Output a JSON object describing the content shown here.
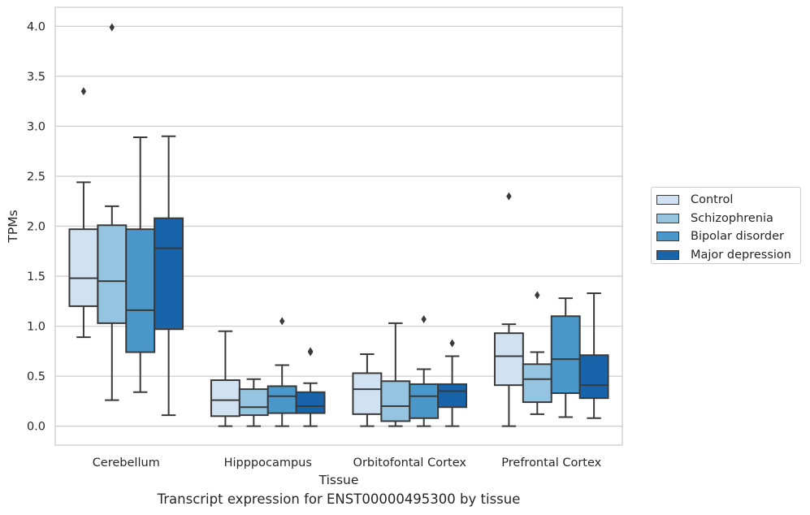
{
  "caption": "Transcript expression for ENST00000495300 by tissue",
  "chart_data": {
    "type": "box",
    "xlabel": "Tissue",
    "ylabel": "TPMs",
    "ylim": [
      -0.19,
      4.19
    ],
    "yticks": [
      0.0,
      0.5,
      1.0,
      1.5,
      2.0,
      2.5,
      3.0,
      3.5,
      4.0
    ],
    "ytick_labels": [
      "0.0",
      "0.5",
      "1.0",
      "1.5",
      "2.0",
      "2.5",
      "3.0",
      "3.5",
      "4.0"
    ],
    "grid": "horizontal",
    "legend_placement": "right, outside",
    "categories": [
      "Cerebellum",
      "Hipppocampus",
      "Orbitofontal Cortex",
      "Prefrontal Cortex"
    ],
    "series": [
      {
        "name": "Control",
        "color": "#d0e1f2",
        "boxes": [
          {
            "whislo": 0.89,
            "q1": 1.2,
            "med": 1.48,
            "q3": 1.97,
            "whishi": 2.44,
            "fliers": [
              3.35
            ]
          },
          {
            "whislo": 0.0,
            "q1": 0.1,
            "med": 0.26,
            "q3": 0.46,
            "whishi": 0.95,
            "fliers": []
          },
          {
            "whislo": 0.0,
            "q1": 0.12,
            "med": 0.37,
            "q3": 0.53,
            "whishi": 0.72,
            "fliers": []
          },
          {
            "whislo": 0.0,
            "q1": 0.41,
            "med": 0.7,
            "q3": 0.93,
            "whishi": 1.02,
            "fliers": [
              2.3
            ]
          }
        ]
      },
      {
        "name": "Schizophrenia",
        "color": "#94c4df",
        "boxes": [
          {
            "whislo": 0.26,
            "q1": 1.03,
            "med": 1.45,
            "q3": 2.01,
            "whishi": 2.2,
            "fliers": [
              3.99
            ]
          },
          {
            "whislo": 0.0,
            "q1": 0.11,
            "med": 0.19,
            "q3": 0.37,
            "whishi": 0.47,
            "fliers": []
          },
          {
            "whislo": 0.0,
            "q1": 0.05,
            "med": 0.2,
            "q3": 0.45,
            "whishi": 1.03,
            "fliers": []
          },
          {
            "whislo": 0.12,
            "q1": 0.24,
            "med": 0.47,
            "q3": 0.62,
            "whishi": 0.74,
            "fliers": [
              1.31
            ]
          }
        ]
      },
      {
        "name": "Bipolar disorder",
        "color": "#4a98c9",
        "boxes": [
          {
            "whislo": 0.34,
            "q1": 0.74,
            "med": 1.16,
            "q3": 1.97,
            "whishi": 2.89,
            "fliers": []
          },
          {
            "whislo": 0.0,
            "q1": 0.13,
            "med": 0.3,
            "q3": 0.4,
            "whishi": 0.61,
            "fliers": [
              1.05
            ]
          },
          {
            "whislo": 0.0,
            "q1": 0.08,
            "med": 0.3,
            "q3": 0.42,
            "whishi": 0.57,
            "fliers": [
              1.07
            ]
          },
          {
            "whislo": 0.09,
            "q1": 0.33,
            "med": 0.67,
            "q3": 1.1,
            "whishi": 1.28,
            "fliers": []
          }
        ]
      },
      {
        "name": "Major depression",
        "color": "#1764ab",
        "boxes": [
          {
            "whislo": 0.11,
            "q1": 0.97,
            "med": 1.78,
            "q3": 2.08,
            "whishi": 2.9,
            "fliers": []
          },
          {
            "whislo": 0.0,
            "q1": 0.13,
            "med": 0.2,
            "q3": 0.34,
            "whishi": 0.43,
            "fliers": [
              0.74,
              0.75
            ]
          },
          {
            "whislo": 0.0,
            "q1": 0.19,
            "med": 0.35,
            "q3": 0.42,
            "whishi": 0.7,
            "fliers": [
              0.83
            ]
          },
          {
            "whislo": 0.08,
            "q1": 0.28,
            "med": 0.41,
            "q3": 0.71,
            "whishi": 1.33,
            "fliers": []
          }
        ]
      }
    ]
  }
}
